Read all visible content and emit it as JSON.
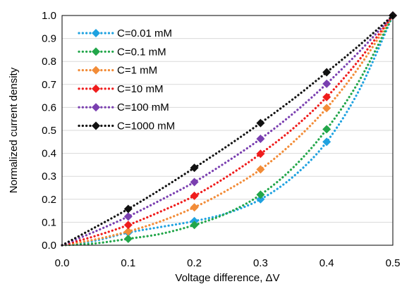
{
  "chart_data": {
    "type": "line",
    "xlabel": "Voltage difference, ΔV",
    "ylabel": "Normalized current density",
    "xlim": [
      0,
      0.5
    ],
    "ylim": [
      0,
      1.0
    ],
    "x_ticks": [
      "0.0",
      "0.1",
      "0.2",
      "0.3",
      "0.4",
      "0.5"
    ],
    "y_ticks": [
      "0.0",
      "0.1",
      "0.2",
      "0.3",
      "0.4",
      "0.5",
      "0.6",
      "0.7",
      "0.8",
      "0.9",
      "1.0"
    ],
    "grid": "horizontal",
    "legend_placement": "top-left",
    "line_style": "dotted",
    "marker": "diamond",
    "series": [
      {
        "name": "C=0.01 mM",
        "color": "#1fa2e0",
        "x": [
          0,
          0.1,
          0.2,
          0.3,
          0.4,
          0.5
        ],
        "y": [
          0,
          0.055,
          0.105,
          0.2,
          0.45,
          1.0
        ],
        "curve": [
          [
            0,
            0
          ],
          [
            0.05,
            0.02
          ],
          [
            0.1,
            0.055
          ],
          [
            0.15,
            0.08
          ],
          [
            0.2,
            0.105
          ],
          [
            0.25,
            0.14
          ],
          [
            0.3,
            0.2
          ],
          [
            0.35,
            0.3
          ],
          [
            0.4,
            0.45
          ],
          [
            0.45,
            0.68
          ],
          [
            0.5,
            1.0
          ]
        ]
      },
      {
        "name": "C=0.1 mM",
        "color": "#22a64a",
        "x": [
          0,
          0.1,
          0.2,
          0.3,
          0.4,
          0.5
        ],
        "y": [
          0,
          0.028,
          0.088,
          0.22,
          0.505,
          1.0
        ],
        "curve": [
          [
            0,
            0
          ],
          [
            0.05,
            0.008
          ],
          [
            0.1,
            0.028
          ],
          [
            0.15,
            0.05
          ],
          [
            0.2,
            0.088
          ],
          [
            0.25,
            0.14
          ],
          [
            0.3,
            0.22
          ],
          [
            0.35,
            0.34
          ],
          [
            0.4,
            0.505
          ],
          [
            0.45,
            0.72
          ],
          [
            0.5,
            1.0
          ]
        ]
      },
      {
        "name": "C=1 mM",
        "color": "#f28c38",
        "x": [
          0,
          0.1,
          0.2,
          0.3,
          0.4,
          0.5
        ],
        "y": [
          0,
          0.06,
          0.165,
          0.33,
          0.597,
          1.0
        ],
        "curve": [
          [
            0,
            0
          ],
          [
            0.05,
            0.025
          ],
          [
            0.1,
            0.06
          ],
          [
            0.15,
            0.105
          ],
          [
            0.2,
            0.165
          ],
          [
            0.25,
            0.24
          ],
          [
            0.3,
            0.33
          ],
          [
            0.35,
            0.45
          ],
          [
            0.4,
            0.597
          ],
          [
            0.45,
            0.78
          ],
          [
            0.5,
            1.0
          ]
        ]
      },
      {
        "name": "C=10 mM",
        "color": "#ef1c1c",
        "x": [
          0,
          0.1,
          0.2,
          0.3,
          0.4,
          0.5
        ],
        "y": [
          0,
          0.088,
          0.215,
          0.398,
          0.645,
          1.0
        ],
        "curve": [
          [
            0,
            0
          ],
          [
            0.05,
            0.04
          ],
          [
            0.1,
            0.088
          ],
          [
            0.15,
            0.148
          ],
          [
            0.2,
            0.215
          ],
          [
            0.25,
            0.3
          ],
          [
            0.3,
            0.398
          ],
          [
            0.35,
            0.51
          ],
          [
            0.4,
            0.645
          ],
          [
            0.45,
            0.81
          ],
          [
            0.5,
            1.0
          ]
        ]
      },
      {
        "name": "C=100 mM",
        "color": "#7a3fb0",
        "x": [
          0,
          0.1,
          0.2,
          0.3,
          0.4,
          0.5
        ],
        "y": [
          0,
          0.125,
          0.275,
          0.463,
          0.703,
          1.0
        ],
        "curve": [
          [
            0,
            0
          ],
          [
            0.05,
            0.06
          ],
          [
            0.1,
            0.125
          ],
          [
            0.15,
            0.198
          ],
          [
            0.2,
            0.275
          ],
          [
            0.25,
            0.365
          ],
          [
            0.3,
            0.463
          ],
          [
            0.35,
            0.575
          ],
          [
            0.4,
            0.703
          ],
          [
            0.45,
            0.845
          ],
          [
            0.5,
            1.0
          ]
        ]
      },
      {
        "name": "C=1000 mM",
        "color": "#111111",
        "x": [
          0,
          0.1,
          0.2,
          0.3,
          0.4,
          0.5
        ],
        "y": [
          0,
          0.158,
          0.337,
          0.532,
          0.753,
          1.0
        ],
        "curve": [
          [
            0,
            0
          ],
          [
            0.05,
            0.078
          ],
          [
            0.1,
            0.158
          ],
          [
            0.15,
            0.245
          ],
          [
            0.2,
            0.337
          ],
          [
            0.25,
            0.432
          ],
          [
            0.3,
            0.532
          ],
          [
            0.35,
            0.638
          ],
          [
            0.4,
            0.753
          ],
          [
            0.45,
            0.872
          ],
          [
            0.5,
            1.0
          ]
        ]
      }
    ]
  }
}
